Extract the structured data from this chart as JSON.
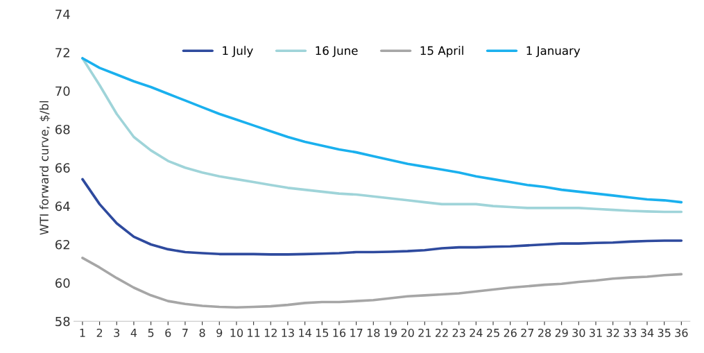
{
  "chart_data": {
    "type": "line",
    "ylabel": "WTI forward curve, $/bl",
    "categories": [
      "1",
      "2",
      "3",
      "4",
      "5",
      "6",
      "7",
      "8",
      "9",
      "10",
      "11",
      "12",
      "13",
      "14",
      "15",
      "16",
      "17",
      "18",
      "19",
      "20",
      "21",
      "22",
      "23",
      "24",
      "25",
      "26",
      "27",
      "28",
      "29",
      "30",
      "31",
      "32",
      "33",
      "34",
      "35",
      "36"
    ],
    "ylim": [
      58,
      74
    ],
    "yticks": [
      58,
      60,
      62,
      64,
      66,
      68,
      70,
      72,
      74
    ],
    "grid": false,
    "legend": "top",
    "marker": "none",
    "line_style": "solid",
    "series": [
      {
        "name": "1 July",
        "color": "#2e4a9e",
        "values": [
          65.4,
          64.1,
          63.1,
          62.4,
          62.0,
          61.75,
          61.6,
          61.55,
          61.5,
          61.5,
          61.5,
          61.48,
          61.48,
          61.5,
          61.52,
          61.55,
          61.6,
          61.6,
          61.62,
          61.65,
          61.7,
          61.8,
          61.85,
          61.85,
          61.88,
          61.9,
          61.95,
          62.0,
          62.05,
          62.05,
          62.08,
          62.1,
          62.15,
          62.18,
          62.2,
          62.2
        ]
      },
      {
        "name": "16 June",
        "color": "#9fd4d9",
        "values": [
          71.7,
          70.3,
          68.8,
          67.6,
          66.9,
          66.35,
          66.0,
          65.75,
          65.55,
          65.4,
          65.25,
          65.1,
          64.95,
          64.85,
          64.75,
          64.65,
          64.6,
          64.5,
          64.4,
          64.3,
          64.2,
          64.1,
          64.1,
          64.1,
          64.0,
          63.95,
          63.9,
          63.9,
          63.9,
          63.9,
          63.85,
          63.8,
          63.75,
          63.72,
          63.7,
          63.7
        ]
      },
      {
        "name": "15 April",
        "color": "#a6a6a6",
        "values": [
          61.3,
          60.8,
          60.25,
          59.75,
          59.35,
          59.05,
          58.9,
          58.8,
          58.75,
          58.72,
          58.75,
          58.78,
          58.85,
          58.95,
          59.0,
          59.0,
          59.05,
          59.1,
          59.2,
          59.3,
          59.35,
          59.4,
          59.45,
          59.55,
          59.65,
          59.75,
          59.82,
          59.9,
          59.95,
          60.05,
          60.12,
          60.22,
          60.28,
          60.32,
          60.4,
          60.45
        ]
      },
      {
        "name": "1 January",
        "color": "#1ab0ee",
        "values": [
          71.7,
          71.2,
          70.85,
          70.5,
          70.2,
          69.85,
          69.5,
          69.15,
          68.8,
          68.5,
          68.2,
          67.9,
          67.6,
          67.35,
          67.15,
          66.95,
          66.8,
          66.6,
          66.4,
          66.2,
          66.05,
          65.9,
          65.75,
          65.55,
          65.4,
          65.25,
          65.1,
          65.0,
          64.85,
          64.75,
          64.65,
          64.55,
          64.45,
          64.35,
          64.3,
          64.2
        ]
      }
    ]
  }
}
